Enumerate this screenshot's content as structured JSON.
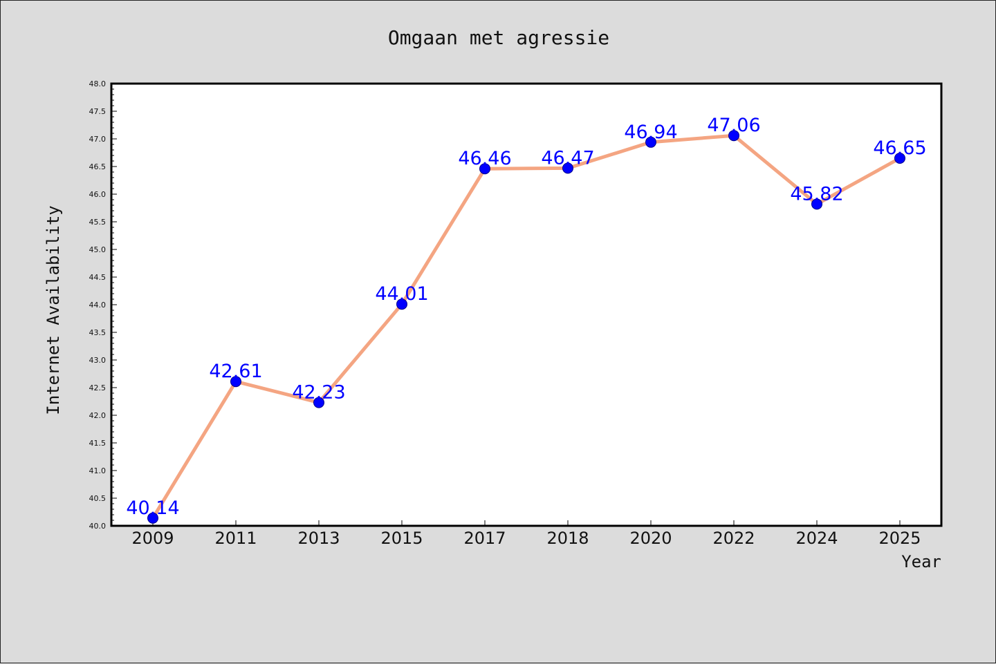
{
  "chart_data": {
    "type": "line",
    "title": "Omgaan met agressie",
    "xlabel": "Year",
    "ylabel": "Internet Availability",
    "categories": [
      "2009",
      "2011",
      "2013",
      "2015",
      "2017",
      "2018",
      "2020",
      "2022",
      "2024",
      "2025"
    ],
    "values": [
      40.14,
      42.61,
      42.23,
      44.01,
      46.46,
      46.47,
      46.94,
      47.06,
      45.82,
      46.65
    ],
    "data_labels": [
      "40.14",
      "42.61",
      "42.23",
      "44.01",
      "46.46",
      "46.47",
      "46.94",
      "47.06",
      "45.82",
      "46.65"
    ],
    "ylim": [
      40.0,
      48.0
    ],
    "ytick_step": 0.5,
    "yticks": [
      "40.0",
      "40.5",
      "41.0",
      "41.5",
      "42.0",
      "42.5",
      "43.0",
      "43.5",
      "44.0",
      "44.5",
      "45.0",
      "45.5",
      "46.0",
      "46.5",
      "47.0",
      "47.5",
      "48.0"
    ],
    "grid": false,
    "legend": "none",
    "colors": {
      "line": "#f4a582",
      "marker": "#0000ff",
      "marker_edge": "#00008b",
      "data_label": "#0000ff",
      "plot_bg": "#ffffff",
      "page_bg": "#dcdcdc"
    }
  }
}
